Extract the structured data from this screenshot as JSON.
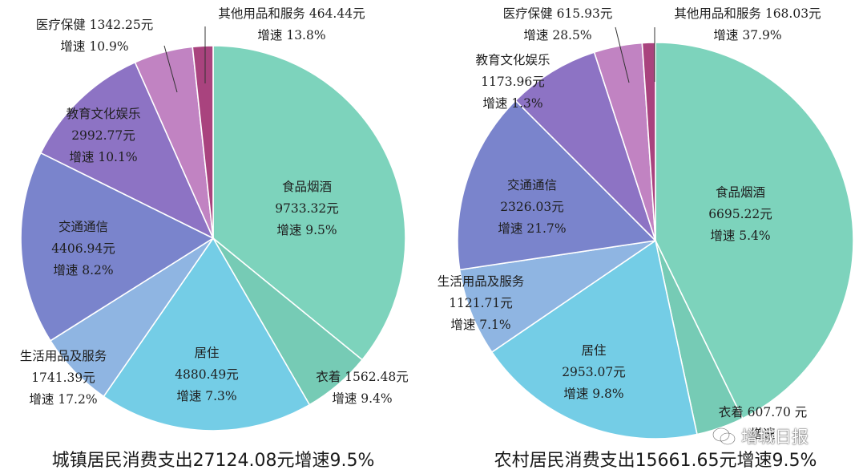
{
  "colors": {
    "food": "#7dd3bc",
    "clothing": "#76cbb5",
    "housing": "#74cde6",
    "living": "#8fb5e2",
    "transport": "#7a84cc",
    "education": "#8d73c4",
    "medical": "#c183c2",
    "other": "#a9437e",
    "edge": "#ffffff",
    "leader": "#333333"
  },
  "chart_data": [
    {
      "type": "pie",
      "caption": "城镇居民消费支出27124.08元增速9.5%",
      "total": 27124.08,
      "unit": "元",
      "slices": [
        {
          "key": "food",
          "value": 9733.32,
          "lines": [
            "食品烟酒",
            "9733.32元",
            "增速 9.5%"
          ]
        },
        {
          "key": "clothing",
          "value": 1562.48,
          "lines": [
            "衣着 1562.48元",
            "增速 9.4%"
          ]
        },
        {
          "key": "housing",
          "value": 4880.49,
          "lines": [
            "居住",
            "4880.49元",
            "增速 7.3%"
          ]
        },
        {
          "key": "living",
          "value": 1741.39,
          "lines": [
            "生活用品及服务",
            "1741.39元",
            "增速 17.2%"
          ]
        },
        {
          "key": "transport",
          "value": 4406.94,
          "lines": [
            "交通通信",
            "4406.94元",
            "增速 8.2%"
          ]
        },
        {
          "key": "education",
          "value": 2992.77,
          "lines": [
            "教育文化娱乐",
            "2992.77元",
            "增速 10.1%"
          ]
        },
        {
          "key": "medical",
          "value": 1342.25,
          "lines": [
            "医疗保健 1342.25元",
            "增速 10.9%"
          ]
        },
        {
          "key": "other",
          "value": 464.44,
          "lines": [
            "其他用品和服务 464.44元",
            "增速 13.8%"
          ]
        }
      ]
    },
    {
      "type": "pie",
      "caption": "农村居民消费支出15661.65元增速9.5%",
      "total": 15661.65,
      "unit": "元",
      "slices": [
        {
          "key": "food",
          "value": 6695.22,
          "lines": [
            "食品烟酒",
            "6695.22元",
            "增速 5.4%"
          ]
        },
        {
          "key": "clothing",
          "value": 607.7,
          "lines": [
            "衣着 607.70 元",
            "增速"
          ]
        },
        {
          "key": "housing",
          "value": 2953.07,
          "lines": [
            "居住",
            "2953.07元",
            "增速 9.8%"
          ]
        },
        {
          "key": "living",
          "value": 1121.71,
          "lines": [
            "生活用品及服务",
            "1121.71元",
            "增速 7.1%"
          ]
        },
        {
          "key": "transport",
          "value": 2326.03,
          "lines": [
            "交通通信",
            "2326.03元",
            "增速 21.7%"
          ]
        },
        {
          "key": "education",
          "value": 1173.96,
          "lines": [
            "教育文化娱乐",
            "1173.96元",
            "增速 1.3%"
          ]
        },
        {
          "key": "medical",
          "value": 615.93,
          "lines": [
            "医疗保健 615.93元",
            "增速 28.5%"
          ]
        },
        {
          "key": "other",
          "value": 168.03,
          "lines": [
            "其他用品和服务 168.03元",
            "增速 37.9%"
          ]
        }
      ]
    }
  ],
  "watermark": {
    "text": "增城日报",
    "icon": "wechat-icon"
  }
}
